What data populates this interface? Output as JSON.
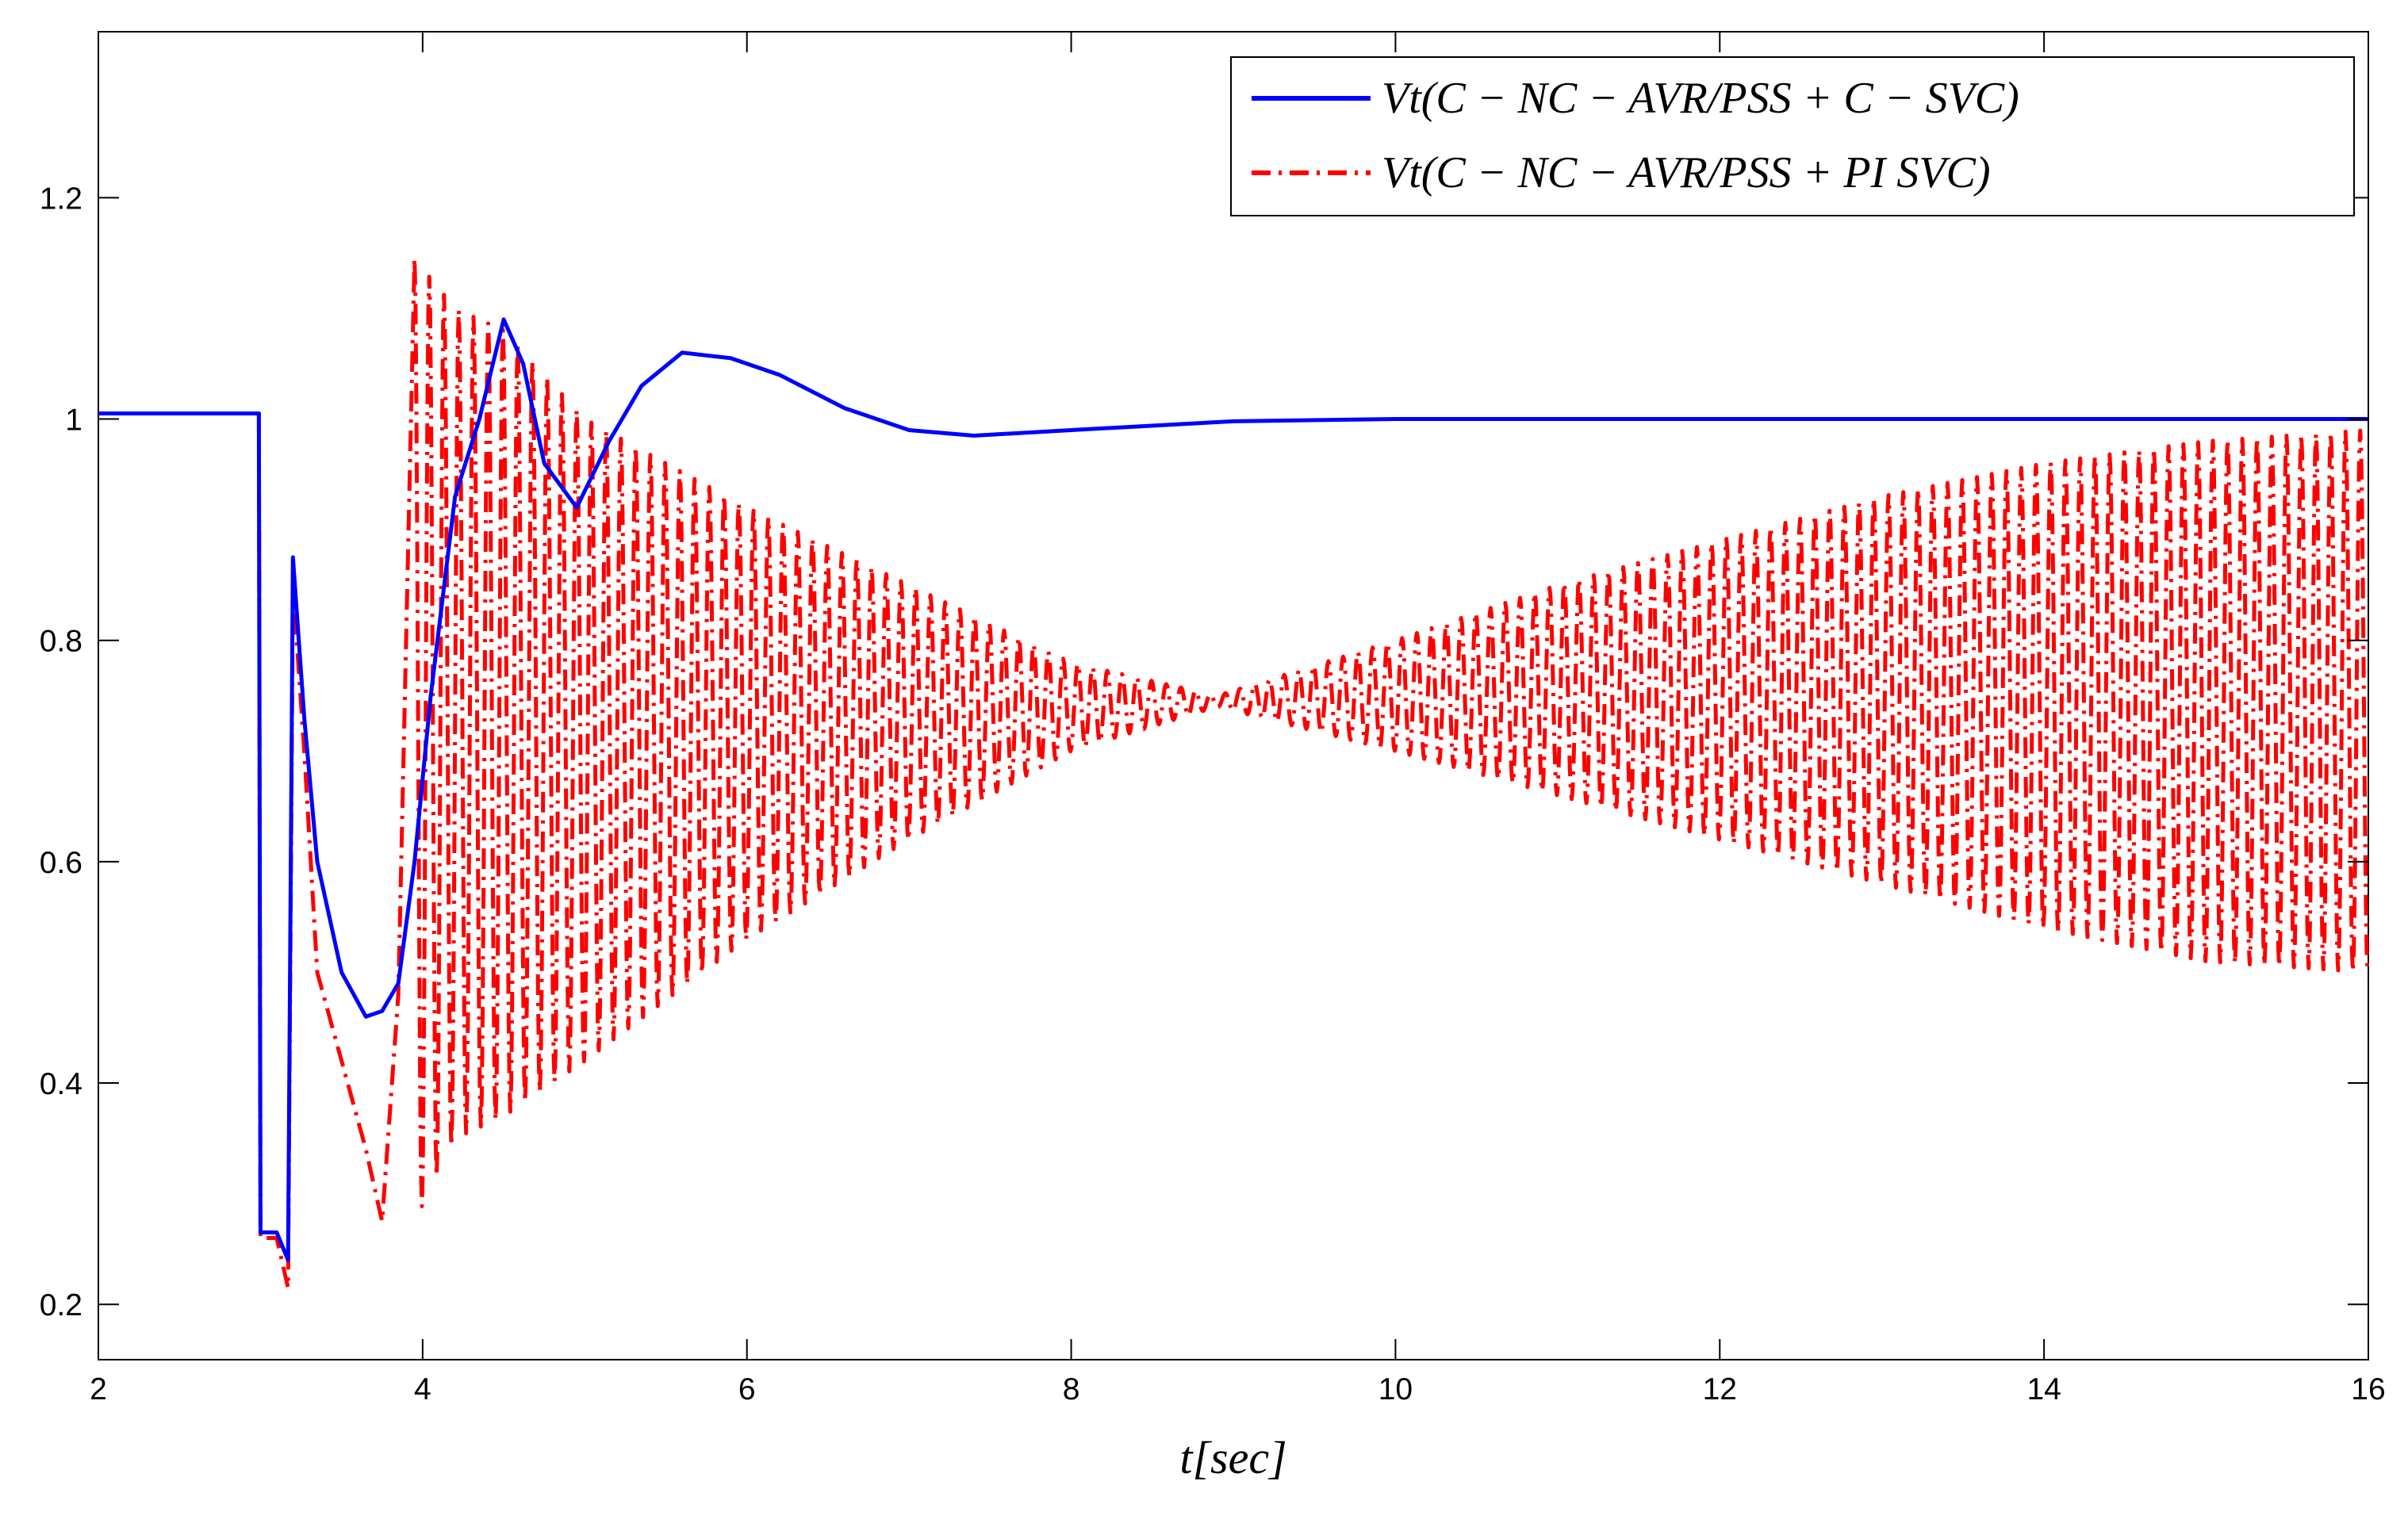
{
  "chart_data": {
    "type": "line",
    "title": "",
    "xlabel": "t[sec]",
    "ylabel": "",
    "xlim": [
      2,
      16
    ],
    "ylim": [
      0.15,
      1.35
    ],
    "x_ticks": [
      2,
      4,
      6,
      8,
      10,
      12,
      14,
      16
    ],
    "x_tick_labels": [
      "2",
      "4",
      "6",
      "8",
      "10",
      "12",
      "14",
      "16"
    ],
    "y_ticks": [
      0.2,
      0.4,
      0.6,
      0.8,
      1.0,
      1.2
    ],
    "y_tick_labels": [
      "0.2",
      "0.4",
      "0.6",
      "0.8",
      "1",
      "1.2"
    ],
    "grid": false,
    "legend_position": "top-right",
    "series": [
      {
        "name": "V_t(C − NC − AVR/PSS + C − SVC)",
        "legend_label": "Vt(C − NC − AVR/PSS + C − SVC)",
        "color": "#0000ff",
        "style": "solid",
        "points": [
          [
            2.0,
            1.005
          ],
          [
            2.99,
            1.005
          ],
          [
            3.0,
            0.265
          ],
          [
            3.1,
            0.265
          ],
          [
            3.17,
            0.24
          ],
          [
            3.2,
            0.875
          ],
          [
            3.27,
            0.73
          ],
          [
            3.35,
            0.6
          ],
          [
            3.5,
            0.5
          ],
          [
            3.65,
            0.46
          ],
          [
            3.75,
            0.465
          ],
          [
            3.85,
            0.49
          ],
          [
            3.95,
            0.6
          ],
          [
            4.05,
            0.75
          ],
          [
            4.2,
            0.93
          ],
          [
            4.35,
            1.0
          ],
          [
            4.5,
            1.09
          ],
          [
            4.62,
            1.05
          ],
          [
            4.75,
            0.96
          ],
          [
            4.95,
            0.92
          ],
          [
            5.15,
            0.98
          ],
          [
            5.35,
            1.03
          ],
          [
            5.6,
            1.06
          ],
          [
            5.9,
            1.055
          ],
          [
            6.2,
            1.04
          ],
          [
            6.6,
            1.01
          ],
          [
            7.0,
            0.99
          ],
          [
            7.4,
            0.985
          ],
          [
            8.0,
            0.99
          ],
          [
            9.0,
            0.998
          ],
          [
            10.0,
            1.0
          ],
          [
            12.0,
            1.0
          ],
          [
            14.0,
            1.0
          ],
          [
            16.0,
            1.0
          ]
        ]
      },
      {
        "name": "V_t(C − NC − AVR/PSS + PI SVC)",
        "legend_label": "Vt(C − NC − AVR/PSS + PI SVC)",
        "color": "#ff0000",
        "style": "dashdot",
        "prefix_points": [
          [
            2.0,
            1.005
          ],
          [
            2.99,
            1.005
          ],
          [
            3.0,
            0.26
          ],
          [
            3.1,
            0.26
          ],
          [
            3.17,
            0.215
          ],
          [
            3.2,
            0.85
          ],
          [
            3.27,
            0.7
          ],
          [
            3.35,
            0.5
          ],
          [
            3.5,
            0.42
          ],
          [
            3.65,
            0.34
          ],
          [
            3.75,
            0.275
          ],
          [
            3.85,
            0.48
          ],
          [
            3.95,
            1.145
          ]
        ],
        "oscillation": {
          "start_time": 3.95,
          "end_time": 16.0,
          "frequency_hz": 11.0,
          "envelope_points": [
            [
              3.95,
              1.145,
              0.275
            ],
            [
              4.2,
              1.1,
              0.35
            ],
            [
              4.5,
              1.08,
              0.37
            ],
            [
              5.0,
              1.0,
              0.42
            ],
            [
              6.0,
              0.92,
              0.53
            ],
            [
              7.0,
              0.85,
              0.62
            ],
            [
              8.0,
              0.78,
              0.7
            ],
            [
              8.9,
              0.75,
              0.74
            ],
            [
              10.0,
              0.8,
              0.7
            ],
            [
              11.0,
              0.85,
              0.66
            ],
            [
              12.0,
              0.89,
              0.62
            ],
            [
              13.0,
              0.93,
              0.58
            ],
            [
              14.0,
              0.96,
              0.54
            ],
            [
              15.0,
              0.98,
              0.51
            ],
            [
              16.0,
              0.99,
              0.5
            ]
          ]
        }
      }
    ]
  }
}
